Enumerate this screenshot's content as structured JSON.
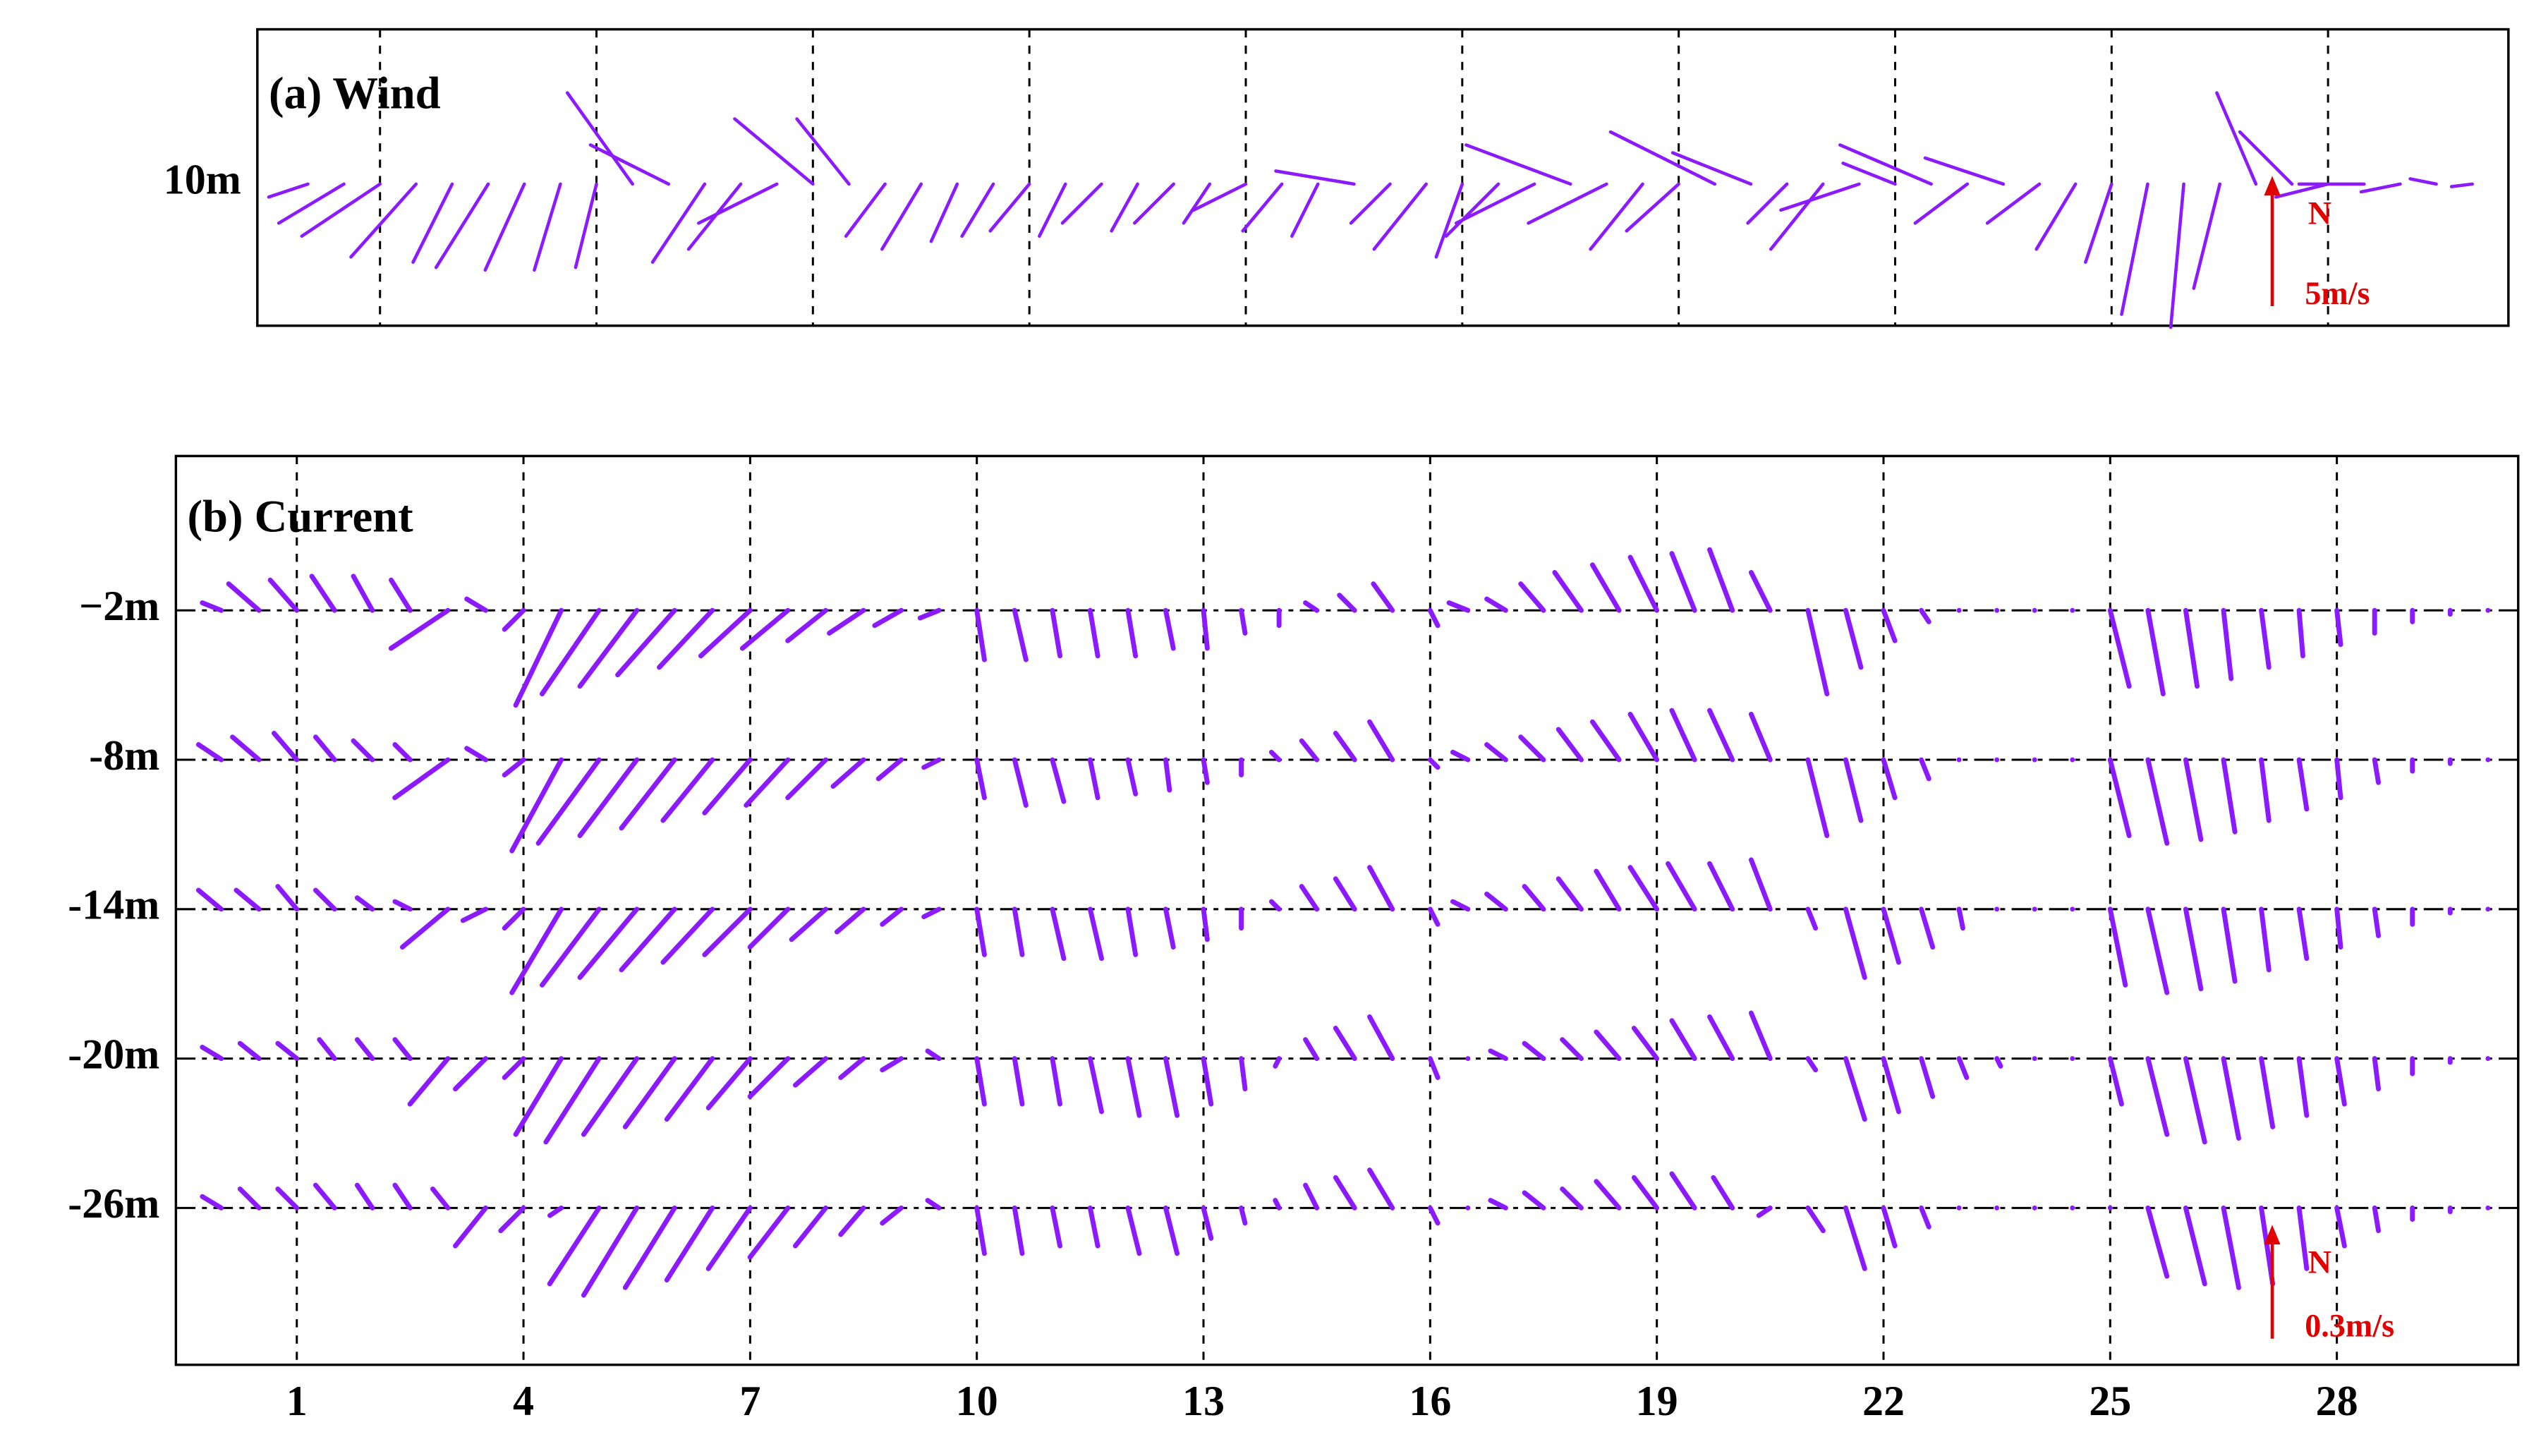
{
  "chart_data": [
    {
      "type": "stick",
      "title": "(a) Wind",
      "x": [
        0,
        0.5,
        1,
        1.5,
        2,
        2.5,
        3,
        3.5,
        4,
        4.5,
        5,
        5.5,
        6,
        6.5,
        7,
        7.5,
        8,
        8.5,
        9,
        9.5,
        10,
        10.5,
        11,
        11.5,
        12,
        12.5,
        13,
        13.5,
        14,
        14.5,
        15,
        15.5,
        16,
        16.5,
        17,
        17.5,
        18,
        18.5,
        19,
        19.5,
        20,
        20.5,
        21,
        21.5,
        22,
        22.5,
        23,
        23.5,
        24,
        24.5,
        25,
        25.5,
        26,
        26.5,
        27,
        27.5,
        28,
        28.5,
        29,
        29.5,
        30
      ],
      "xlim": [
        -0.7,
        30.5
      ],
      "xticks": [
        1,
        4,
        7,
        10,
        13,
        16,
        19,
        22,
        25,
        28
      ],
      "series": [
        {
          "name": "10m",
          "color": "#8c1aff",
          "u": [
            -1.5,
            -2.5,
            -3,
            -2.5,
            -1.5,
            -2,
            -1.5,
            -1,
            -0.8,
            -2.5,
            -3,
            -2,
            -2,
            -3,
            -3,
            -2,
            -1.5,
            -1.5,
            -1,
            -1.2,
            -1.5,
            -1,
            -1.5,
            -1,
            -1.5,
            -1,
            -2,
            -1.5,
            -1,
            -3,
            -1.5,
            -2,
            -1,
            -2,
            -3,
            -4,
            -3,
            -2,
            -2,
            -4,
            -3,
            -1.5,
            -2,
            -3,
            -2,
            -3.5,
            -2,
            -3,
            -2,
            -1.5,
            -1,
            -1,
            -0.5,
            -1,
            -1.5,
            -2,
            -2,
            -2.5,
            -1.5,
            -1,
            -0.8
          ],
          "v": [
            -0.5,
            -1.5,
            -2,
            -2.8,
            -3,
            -3.2,
            -3.3,
            -3.3,
            -3.2,
            3.5,
            1.5,
            -3,
            -2.5,
            -1.5,
            2.5,
            2.5,
            -2,
            -2.5,
            -2.2,
            -2,
            -1.8,
            -2,
            -1.5,
            -1.8,
            -1.5,
            -1.5,
            -1,
            -1.8,
            -2,
            0.5,
            -1.5,
            -2.5,
            -2.8,
            -2,
            -1.5,
            1.5,
            -1.5,
            -2.5,
            -1.8,
            2,
            1.2,
            -1.5,
            -2.5,
            -1,
            0.8,
            1.5,
            -1.5,
            1,
            -1.5,
            -2.5,
            -3,
            -5,
            -5.5,
            -4,
            3.5,
            2,
            -0.5,
            0,
            -0.3,
            0.2,
            -0.1
          ]
        }
      ],
      "reference": {
        "value": 5,
        "label": "5m/s",
        "north": "N",
        "color": "#e00000"
      }
    },
    {
      "type": "stick",
      "title": "(b) Current",
      "x": [
        0,
        0.5,
        1,
        1.5,
        2,
        2.5,
        3,
        3.5,
        4,
        4.5,
        5,
        5.5,
        6,
        6.5,
        7,
        7.5,
        8,
        8.5,
        9,
        9.5,
        10,
        10.5,
        11,
        11.5,
        12,
        12.5,
        13,
        13.5,
        14,
        14.5,
        15,
        15.5,
        16,
        16.5,
        17,
        17.5,
        18,
        18.5,
        19,
        19.5,
        20,
        20.5,
        21,
        21.5,
        22,
        22.5,
        23,
        23.5,
        24,
        24.5,
        25,
        25.5,
        26,
        26.5,
        27,
        27.5,
        28,
        28.5,
        29,
        29.5,
        30
      ],
      "xlim": [
        -0.6,
        30.4
      ],
      "xticks": [
        1,
        4,
        7,
        10,
        13,
        16,
        19,
        22,
        25,
        28
      ],
      "ylim": [
        -32.3,
        4.2
      ],
      "series": [
        {
          "name": "−2m",
          "level": -2,
          "color": "#8c1aff",
          "u": [
            -0.05,
            -0.08,
            -0.07,
            -0.06,
            -0.05,
            -0.05,
            -0.15,
            -0.05,
            -0.05,
            -0.12,
            -0.15,
            -0.15,
            -0.15,
            -0.14,
            -0.13,
            -0.12,
            -0.1,
            -0.09,
            -0.07,
            -0.05,
            0.02,
            0.03,
            0.02,
            0.02,
            0.02,
            0.02,
            0.01,
            0.01,
            0,
            -0.03,
            -0.04,
            -0.05,
            0.02,
            -0.05,
            -0.05,
            -0.06,
            -0.07,
            -0.07,
            -0.07,
            -0.06,
            -0.06,
            -0.05,
            0.05,
            0.04,
            0.03,
            0.02,
            0,
            0,
            0,
            0,
            0.05,
            0.04,
            0.03,
            0.02,
            0.02,
            0.01,
            0.01,
            0,
            0,
            0,
            0
          ],
          "v": [
            0.02,
            0.07,
            0.08,
            0.09,
            0.09,
            0.08,
            -0.1,
            0.03,
            -0.05,
            -0.25,
            -0.22,
            -0.2,
            -0.17,
            -0.15,
            -0.12,
            -0.1,
            -0.08,
            -0.06,
            -0.04,
            -0.02,
            -0.13,
            -0.13,
            -0.12,
            -0.12,
            -0.12,
            -0.1,
            -0.1,
            -0.06,
            -0.04,
            0.02,
            0.04,
            0.07,
            -0.04,
            0.02,
            0.03,
            0.07,
            0.1,
            0.12,
            0.14,
            0.15,
            0.16,
            0.1,
            -0.22,
            -0.15,
            -0.08,
            -0.03,
            0,
            0,
            0,
            0,
            -0.2,
            -0.22,
            -0.2,
            -0.18,
            -0.15,
            -0.12,
            -0.09,
            -0.06,
            -0.03,
            -0.01,
            0
          ]
        },
        {
          "name": "-8m",
          "level": -8,
          "color": "#8c1aff",
          "u": [
            -0.06,
            -0.07,
            -0.06,
            -0.05,
            -0.05,
            -0.04,
            -0.14,
            -0.05,
            -0.05,
            -0.13,
            -0.16,
            -0.15,
            -0.14,
            -0.13,
            -0.12,
            -0.11,
            -0.1,
            -0.08,
            -0.06,
            -0.04,
            0.02,
            0.03,
            0.03,
            0.02,
            0.02,
            0.01,
            0.01,
            0,
            -0.02,
            -0.04,
            -0.05,
            -0.06,
            0.02,
            -0.04,
            -0.05,
            -0.06,
            -0.06,
            -0.07,
            -0.07,
            -0.06,
            -0.06,
            -0.05,
            0.05,
            0.04,
            0.03,
            0.02,
            0,
            0,
            0,
            0,
            0.05,
            0.05,
            0.04,
            0.03,
            0.02,
            0.02,
            0.01,
            0.01,
            0,
            0,
            0
          ],
          "v": [
            0.04,
            0.06,
            0.07,
            0.06,
            0.05,
            0.04,
            -0.1,
            0.03,
            -0.04,
            -0.24,
            -0.22,
            -0.2,
            -0.18,
            -0.16,
            -0.14,
            -0.12,
            -0.1,
            -0.07,
            -0.05,
            -0.02,
            -0.1,
            -0.12,
            -0.11,
            -0.1,
            -0.09,
            -0.08,
            -0.06,
            -0.04,
            0.02,
            0.05,
            0.07,
            0.1,
            -0.02,
            0.02,
            0.04,
            0.06,
            0.08,
            0.1,
            0.12,
            0.13,
            0.13,
            0.12,
            -0.2,
            -0.16,
            -0.1,
            -0.05,
            0,
            0,
            0,
            0,
            -0.2,
            -0.22,
            -0.21,
            -0.19,
            -0.16,
            -0.13,
            -0.1,
            -0.06,
            -0.03,
            -0.01,
            0
          ]
        },
        {
          "name": "-14m",
          "level": -14,
          "color": "#8c1aff",
          "u": [
            -0.06,
            -0.06,
            -0.05,
            -0.05,
            -0.04,
            -0.04,
            -0.12,
            -0.06,
            -0.05,
            -0.13,
            -0.15,
            -0.15,
            -0.14,
            -0.13,
            -0.12,
            -0.1,
            -0.09,
            -0.07,
            -0.05,
            -0.04,
            0.02,
            0.02,
            0.03,
            0.03,
            0.02,
            0.02,
            0.01,
            0,
            -0.02,
            -0.04,
            -0.05,
            -0.06,
            0.02,
            -0.04,
            -0.05,
            -0.05,
            -0.06,
            -0.06,
            -0.07,
            -0.07,
            -0.06,
            -0.05,
            0.02,
            0.05,
            0.04,
            0.03,
            0.01,
            0,
            0,
            0,
            0.04,
            0.05,
            0.04,
            0.03,
            0.02,
            0.02,
            0.01,
            0.01,
            0,
            0,
            0
          ],
          "v": [
            0.05,
            0.05,
            0.06,
            0.05,
            0.03,
            0.02,
            -0.1,
            -0.03,
            -0.05,
            -0.22,
            -0.2,
            -0.18,
            -0.16,
            -0.14,
            -0.12,
            -0.1,
            -0.08,
            -0.06,
            -0.04,
            -0.02,
            -0.12,
            -0.12,
            -0.13,
            -0.13,
            -0.12,
            -0.1,
            -0.08,
            -0.05,
            0.02,
            0.06,
            0.08,
            0.11,
            -0.04,
            0.02,
            0.04,
            0.06,
            0.08,
            0.1,
            0.11,
            0.12,
            0.12,
            0.13,
            -0.05,
            -0.18,
            -0.14,
            -0.1,
            -0.05,
            0,
            0,
            0,
            -0.2,
            -0.22,
            -0.21,
            -0.19,
            -0.16,
            -0.13,
            -0.1,
            -0.07,
            -0.04,
            -0.01,
            0
          ]
        },
        {
          "name": "-20m",
          "level": -20,
          "color": "#8c1aff",
          "u": [
            -0.05,
            -0.05,
            -0.05,
            -0.04,
            -0.04,
            -0.04,
            -0.1,
            -0.08,
            -0.05,
            -0.12,
            -0.14,
            -0.14,
            -0.13,
            -0.12,
            -0.11,
            -0.1,
            -0.08,
            -0.06,
            -0.05,
            -0.03,
            0.02,
            0.02,
            0.02,
            0.03,
            0.03,
            0.03,
            0.02,
            0.01,
            -0.01,
            -0.03,
            -0.05,
            -0.06,
            0.02,
            0,
            -0.04,
            -0.05,
            -0.05,
            -0.06,
            -0.06,
            -0.06,
            -0.06,
            -0.05,
            0.02,
            0.05,
            0.04,
            0.03,
            0.02,
            0.01,
            0,
            0,
            0.03,
            0.05,
            0.05,
            0.04,
            0.03,
            0.02,
            0.02,
            0.01,
            0,
            0,
            0
          ],
          "v": [
            0.03,
            0.04,
            0.04,
            0.05,
            0.05,
            0.05,
            -0.12,
            -0.08,
            -0.05,
            -0.2,
            -0.22,
            -0.2,
            -0.18,
            -0.16,
            -0.13,
            -0.1,
            -0.07,
            -0.05,
            -0.03,
            0.02,
            -0.12,
            -0.12,
            -0.12,
            -0.14,
            -0.15,
            -0.15,
            -0.12,
            -0.08,
            -0.02,
            0.05,
            0.08,
            0.11,
            -0.05,
            0,
            0.02,
            0.04,
            0.05,
            0.07,
            0.08,
            0.1,
            0.11,
            0.12,
            -0.03,
            -0.16,
            -0.14,
            -0.1,
            -0.05,
            -0.02,
            0,
            0,
            -0.12,
            -0.2,
            -0.22,
            -0.21,
            -0.18,
            -0.15,
            -0.12,
            -0.08,
            -0.04,
            -0.01,
            0
          ]
        },
        {
          "name": "-26m",
          "level": -26,
          "color": "#8c1aff",
          "u": [
            -0.05,
            -0.05,
            -0.05,
            -0.05,
            -0.04,
            -0.04,
            -0.04,
            -0.08,
            -0.06,
            -0.03,
            -0.13,
            -0.14,
            -0.13,
            -0.12,
            -0.11,
            -0.1,
            -0.08,
            -0.06,
            -0.05,
            -0.03,
            0.02,
            0.02,
            0.02,
            0.02,
            0.03,
            0.03,
            0.02,
            0.01,
            -0.01,
            -0.03,
            -0.05,
            -0.06,
            0.02,
            0,
            -0.04,
            -0.05,
            -0.05,
            -0.06,
            -0.06,
            -0.06,
            -0.05,
            -0.03,
            0.04,
            0.05,
            0.03,
            0.02,
            0,
            0,
            0,
            0,
            0,
            0.05,
            0.05,
            0.04,
            0.03,
            0.02,
            0.02,
            0.01,
            0,
            0,
            0
          ],
          "v": [
            0.03,
            0.05,
            0.05,
            0.06,
            0.06,
            0.06,
            0.05,
            -0.1,
            -0.06,
            -0.02,
            -0.2,
            -0.23,
            -0.21,
            -0.19,
            -0.16,
            -0.13,
            -0.1,
            -0.07,
            -0.04,
            0.02,
            -0.12,
            -0.12,
            -0.1,
            -0.1,
            -0.12,
            -0.12,
            -0.08,
            -0.04,
            0.02,
            0.06,
            0.08,
            0.1,
            -0.04,
            0,
            0.02,
            0.04,
            0.05,
            0.07,
            0.08,
            0.09,
            0.08,
            -0.02,
            -0.06,
            -0.16,
            -0.1,
            -0.05,
            0,
            0,
            0,
            0,
            0,
            -0.18,
            -0.2,
            -0.21,
            -0.2,
            -0.16,
            -0.1,
            -0.06,
            -0.03,
            -0.01,
            0
          ]
        }
      ],
      "reference": {
        "value": 0.3,
        "label": "0.3m/s",
        "north": "N",
        "color": "#e00000"
      }
    }
  ]
}
